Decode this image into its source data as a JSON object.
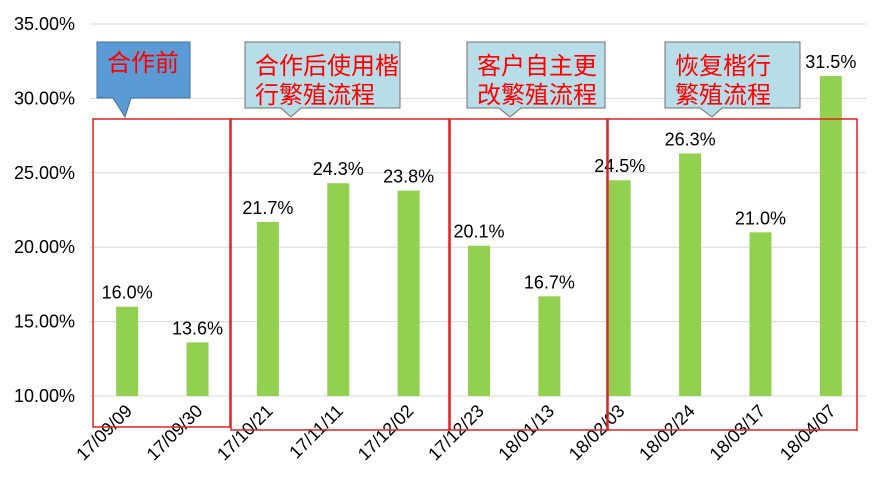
{
  "chart_data": {
    "type": "bar",
    "categories": [
      "17/09/09",
      "17/09/30",
      "17/10/21",
      "17/11/11",
      "17/12/02",
      "17/12/23",
      "18/01/13",
      "18/02/03",
      "18/02/24",
      "18/03/17",
      "18/04/07"
    ],
    "values": [
      16.0,
      13.6,
      21.7,
      24.3,
      23.8,
      20.1,
      16.7,
      24.5,
      26.3,
      21.0,
      31.5
    ],
    "data_labels": [
      "16.0%",
      "13.6%",
      "21.7%",
      "24.3%",
      "23.8%",
      "20.1%",
      "16.7%",
      "24.5%",
      "26.3%",
      "21.0%",
      "31.5%"
    ],
    "yticks": [
      10,
      15,
      20,
      25,
      30,
      35
    ],
    "ytick_labels": [
      "10.00%",
      "15.00%",
      "20.00%",
      "25.00%",
      "30.00%",
      "35.00%"
    ],
    "ylim": [
      10,
      35
    ],
    "grid": true,
    "bar_color": "#92d050",
    "frame_color": "#e02020",
    "annotation_text_color": "#ff0000",
    "annotations": [
      {
        "lines": [
          "合作前"
        ],
        "fill": "#5b9bd5"
      },
      {
        "lines": [
          "合作后使用楷",
          "行繁殖流程"
        ],
        "fill": "#b7dee8"
      },
      {
        "lines": [
          "客户自主更",
          "改繁殖流程"
        ],
        "fill": "#b7dee8"
      },
      {
        "lines": [
          "恢复楷行",
          "繁殖流程"
        ],
        "fill": "#b7dee8"
      }
    ]
  }
}
